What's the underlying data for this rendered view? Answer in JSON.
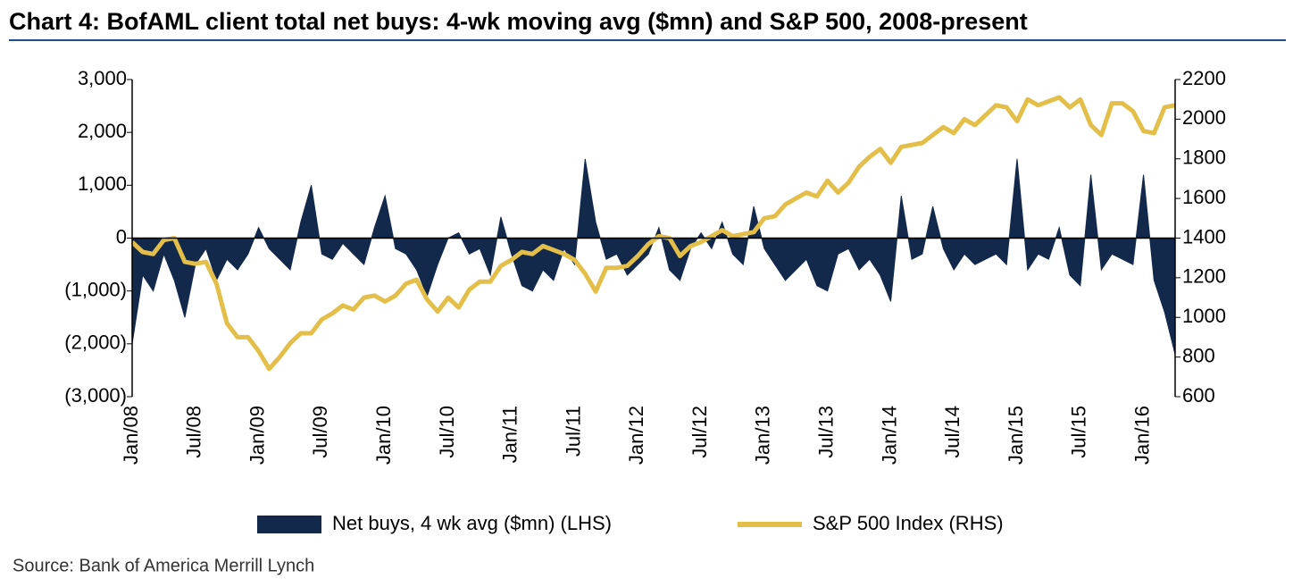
{
  "chart_data": {
    "type": "area-line",
    "title": "Chart 4: BofAML client total net buys: 4-wk moving avg ($mn) and S&P 500, 2008-present",
    "source": "Source: Bank of America Merrill Lynch",
    "categories": [
      "Jan/08",
      null,
      null,
      null,
      null,
      null,
      "Jul/08",
      null,
      null,
      null,
      null,
      null,
      "Jan/09",
      null,
      null,
      null,
      null,
      null,
      "Jul/09",
      null,
      null,
      null,
      null,
      null,
      "Jan/10",
      null,
      null,
      null,
      null,
      null,
      "Jul/10",
      null,
      null,
      null,
      null,
      null,
      "Jan/11",
      null,
      null,
      null,
      null,
      null,
      "Jul/11",
      null,
      null,
      null,
      null,
      null,
      "Jan/12",
      null,
      null,
      null,
      null,
      null,
      "Jul/12",
      null,
      null,
      null,
      null,
      null,
      "Jan/13",
      null,
      null,
      null,
      null,
      null,
      "Jul/13",
      null,
      null,
      null,
      null,
      null,
      "Jan/14",
      null,
      null,
      null,
      null,
      null,
      "Jul/14",
      null,
      null,
      null,
      null,
      null,
      "Jan/15",
      null,
      null,
      null,
      null,
      null,
      "Jul/15",
      null,
      null,
      null,
      null,
      null,
      "Jan/16",
      null,
      null,
      null
    ],
    "series": [
      {
        "name": "Net buys, 4 wk avg ($mn) (LHS)",
        "color": "#13294b",
        "kind": "area",
        "values": [
          -2000,
          -700,
          -1000,
          -300,
          -800,
          -1500,
          -500,
          -200,
          -800,
          -400,
          -600,
          -300,
          200,
          -200,
          -400,
          -600,
          300,
          1000,
          -300,
          -400,
          -100,
          -300,
          -500,
          200,
          800,
          -200,
          -300,
          -600,
          -1100,
          -500,
          0,
          100,
          -300,
          -200,
          -700,
          400,
          -300,
          -900,
          -1000,
          -600,
          -800,
          -200,
          -500,
          1500,
          300,
          -400,
          -300,
          -700,
          -500,
          -300,
          200,
          -600,
          -800,
          -200,
          100,
          -200,
          300,
          -300,
          -500,
          600,
          -200,
          -500,
          -800,
          -600,
          -400,
          -900,
          -1000,
          -300,
          -200,
          -600,
          -400,
          -700,
          -1200,
          800,
          -400,
          -300,
          600,
          -200,
          -600,
          -300,
          -500,
          -400,
          -300,
          -500,
          1500,
          -600,
          -300,
          -400,
          200,
          -700,
          -900,
          1200,
          -600,
          -300,
          -400,
          -500,
          1200,
          -800,
          -1400,
          -2200
        ]
      },
      {
        "name": "S&P 500 Index (RHS)",
        "color": "#e3bf4a",
        "kind": "line",
        "axis": "y2",
        "values": [
          1380,
          1330,
          1320,
          1390,
          1400,
          1280,
          1270,
          1280,
          1170,
          970,
          900,
          900,
          830,
          740,
          800,
          870,
          920,
          920,
          990,
          1020,
          1060,
          1040,
          1100,
          1110,
          1080,
          1110,
          1170,
          1190,
          1090,
          1030,
          1100,
          1050,
          1140,
          1180,
          1180,
          1260,
          1290,
          1330,
          1320,
          1360,
          1340,
          1320,
          1290,
          1220,
          1130,
          1250,
          1250,
          1260,
          1310,
          1370,
          1410,
          1400,
          1310,
          1360,
          1380,
          1410,
          1440,
          1410,
          1420,
          1430,
          1500,
          1510,
          1570,
          1600,
          1630,
          1610,
          1690,
          1630,
          1680,
          1760,
          1810,
          1850,
          1780,
          1860,
          1870,
          1880,
          1920,
          1960,
          1930,
          2000,
          1970,
          2020,
          2070,
          2060,
          1990,
          2100,
          2070,
          2090,
          2110,
          2060,
          2100,
          1970,
          1920,
          2080,
          2080,
          2040,
          1940,
          1930,
          2060,
          2070
        ]
      }
    ],
    "ylim": [
      -3000,
      3000
    ],
    "yticks": [
      {
        "value": -3000,
        "label": "(3,000)"
      },
      {
        "value": -2000,
        "label": "(2,000)"
      },
      {
        "value": -1000,
        "label": "(1,000)"
      },
      0,
      {
        "value": 1000,
        "label": "1,000"
      },
      {
        "value": 2000,
        "label": "2,000"
      },
      {
        "value": 3000,
        "label": "3,000"
      }
    ],
    "y2lim": [
      600,
      2200
    ],
    "y2ticks": [
      600,
      800,
      1000,
      1200,
      1400,
      1600,
      1800,
      2000,
      2200
    ]
  }
}
